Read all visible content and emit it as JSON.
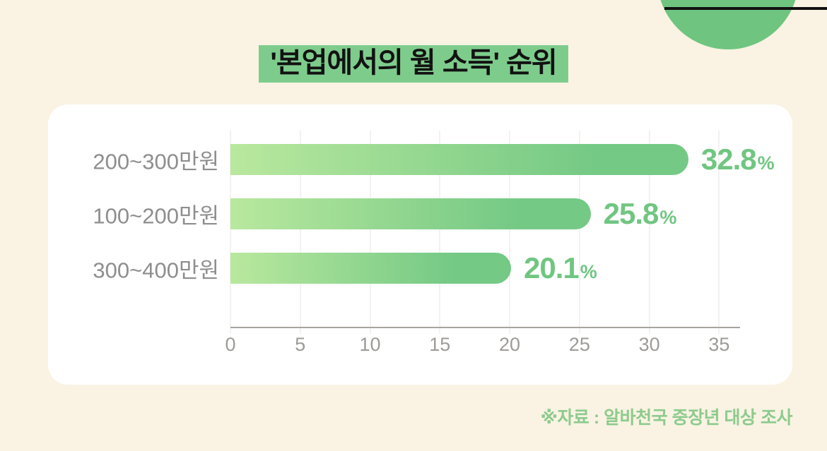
{
  "title": "'본업에서의 월 소득' 순위",
  "source": "※자료 : 알바천국 중장년 대상 조사",
  "chart_data": {
    "type": "bar",
    "orientation": "horizontal",
    "title": "'본업에서의 월 소득' 순위",
    "categories": [
      "200~300만원",
      "100~200만원",
      "300~400만원"
    ],
    "values": [
      32.8,
      25.8,
      20.1
    ],
    "value_labels": [
      "32.8",
      "25.8",
      "20.1"
    ],
    "unit": "%",
    "xlabel": "",
    "ylabel": "",
    "xlim": [
      0,
      36.5
    ],
    "xticks": [
      0,
      5,
      10,
      15,
      20,
      25,
      30,
      35
    ],
    "grid": true,
    "legend": false,
    "bar_gradient_start": "#b9e89e",
    "bar_gradient_end": "#74c985"
  },
  "colors": {
    "background": "#faf3e3",
    "card": "#ffffff",
    "title_highlight": "#7ecc8c",
    "title_text": "#121212",
    "circle": "#6fc57f",
    "top_line": "#121212",
    "gridline": "#e8e5e1",
    "axis": "#a8a5a1",
    "tick_label": "#9d9b98",
    "label_color": "#8e8e8e",
    "value_color": "#70c681",
    "source_text": "#8dcb8d"
  }
}
